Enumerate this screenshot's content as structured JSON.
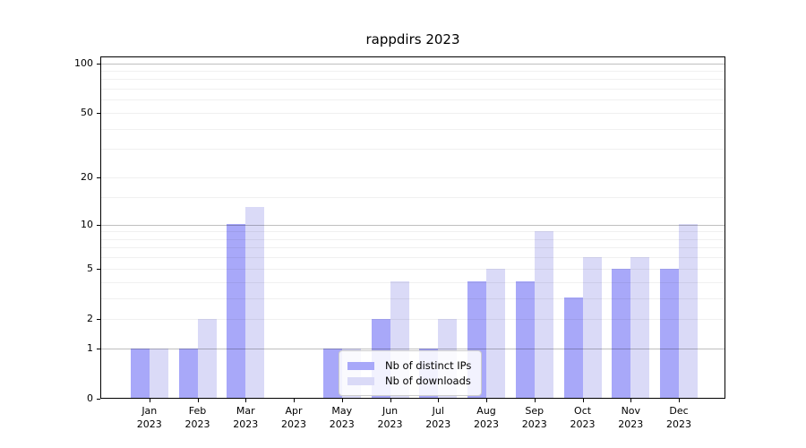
{
  "title": "rappdirs 2023",
  "chart_data": {
    "type": "bar",
    "title": "rappdirs 2023",
    "categories": [
      "Jan",
      "Feb",
      "Mar",
      "Apr",
      "May",
      "Jun",
      "Jul",
      "Aug",
      "Sep",
      "Oct",
      "Nov",
      "Dec"
    ],
    "year": "2023",
    "series": [
      {
        "name": "Nb of distinct IPs",
        "color": "#a8a8f9",
        "values": [
          1,
          1,
          10,
          0,
          1,
          2,
          1,
          4,
          4,
          3,
          5,
          5
        ]
      },
      {
        "name": "Nb of downloads",
        "color": "#dadaf7",
        "values": [
          1,
          2,
          13,
          0,
          1,
          4,
          2,
          5,
          9,
          6,
          6,
          10
        ]
      }
    ],
    "y_scale": "log1p",
    "y_ticks": [
      0,
      1,
      2,
      5,
      10,
      20,
      50,
      100
    ],
    "y_range": [
      0,
      100
    ],
    "grid": {
      "on": true,
      "major": [
        1,
        10,
        100
      ],
      "minor": [
        2,
        3,
        4,
        5,
        6,
        7,
        8,
        9,
        15,
        20,
        30,
        40,
        50,
        60,
        70,
        80,
        90
      ]
    },
    "legend_position": "inside-bottom-center"
  }
}
